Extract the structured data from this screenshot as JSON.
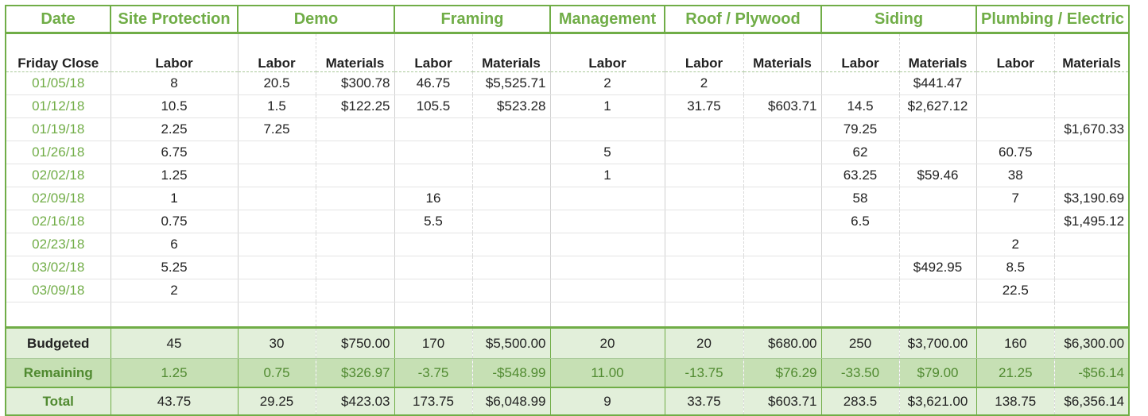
{
  "groups": [
    "Date",
    "Site Protection",
    "Demo",
    "Framing",
    "Management",
    "Roof / Plywood",
    "Siding",
    "Plumbing / Electric"
  ],
  "subheaders": [
    "Friday Close",
    "Labor",
    "Labor",
    "Materials",
    "Labor",
    "Materials",
    "Labor",
    "Labor",
    "Materials",
    "Labor",
    "Materials",
    "Labor",
    "Materials"
  ],
  "rows": [
    [
      "01/05/18",
      "8",
      "20.5",
      "$300.78",
      "46.75",
      "$5,525.71",
      "2",
      "2",
      "",
      "",
      "$441.47",
      "",
      ""
    ],
    [
      "01/12/18",
      "10.5",
      "1.5",
      "$122.25",
      "105.5",
      "$523.28",
      "1",
      "31.75",
      "$603.71",
      "14.5",
      "$2,627.12",
      "",
      ""
    ],
    [
      "01/19/18",
      "2.25",
      "7.25",
      "",
      "",
      "",
      "",
      "",
      "",
      "79.25",
      "",
      "",
      "$1,670.33"
    ],
    [
      "01/26/18",
      "6.75",
      "",
      "",
      "",
      "",
      "5",
      "",
      "",
      "62",
      "",
      "60.75",
      ""
    ],
    [
      "02/02/18",
      "1.25",
      "",
      "",
      "",
      "",
      "1",
      "",
      "",
      "63.25",
      "$59.46",
      "38",
      ""
    ],
    [
      "02/09/18",
      "1",
      "",
      "",
      "16",
      "",
      "",
      "",
      "",
      "58",
      "",
      "7",
      "$3,190.69"
    ],
    [
      "02/16/18",
      "0.75",
      "",
      "",
      "5.5",
      "",
      "",
      "",
      "",
      "6.5",
      "",
      "",
      "$1,495.12"
    ],
    [
      "02/23/18",
      "6",
      "",
      "",
      "",
      "",
      "",
      "",
      "",
      "",
      "",
      "2",
      ""
    ],
    [
      "03/02/18",
      "5.25",
      "",
      "",
      "",
      "",
      "",
      "",
      "",
      "",
      "$492.95",
      "8.5",
      ""
    ],
    [
      "03/09/18",
      "2",
      "",
      "",
      "",
      "",
      "",
      "",
      "",
      "",
      "",
      "22.5",
      ""
    ],
    [
      "",
      "",
      "",
      "",
      "",
      "",
      "",
      "",
      "",
      "",
      "",
      "",
      ""
    ]
  ],
  "budgeted": [
    "Budgeted",
    "45",
    "30",
    "$750.00",
    "170",
    "$5,500.00",
    "20",
    "20",
    "$680.00",
    "250",
    "$3,700.00",
    "160",
    "$6,300.00"
  ],
  "remaining": [
    "Remaining",
    "1.25",
    "0.75",
    "$326.97",
    "-3.75",
    "-$548.99",
    "11.00",
    "-13.75",
    "$76.29",
    "-33.50",
    "$79.00",
    "21.25",
    "-$56.14"
  ],
  "total": [
    "Total",
    "43.75",
    "29.25",
    "$423.03",
    "173.75",
    "$6,048.99",
    "9",
    "33.75",
    "$603.71",
    "283.5",
    "$3,621.00",
    "138.75",
    "$6,356.14"
  ],
  "colors": {
    "accent": "#70ad47",
    "band_light": "#e2efda",
    "band_dark": "#c6e0b4"
  }
}
